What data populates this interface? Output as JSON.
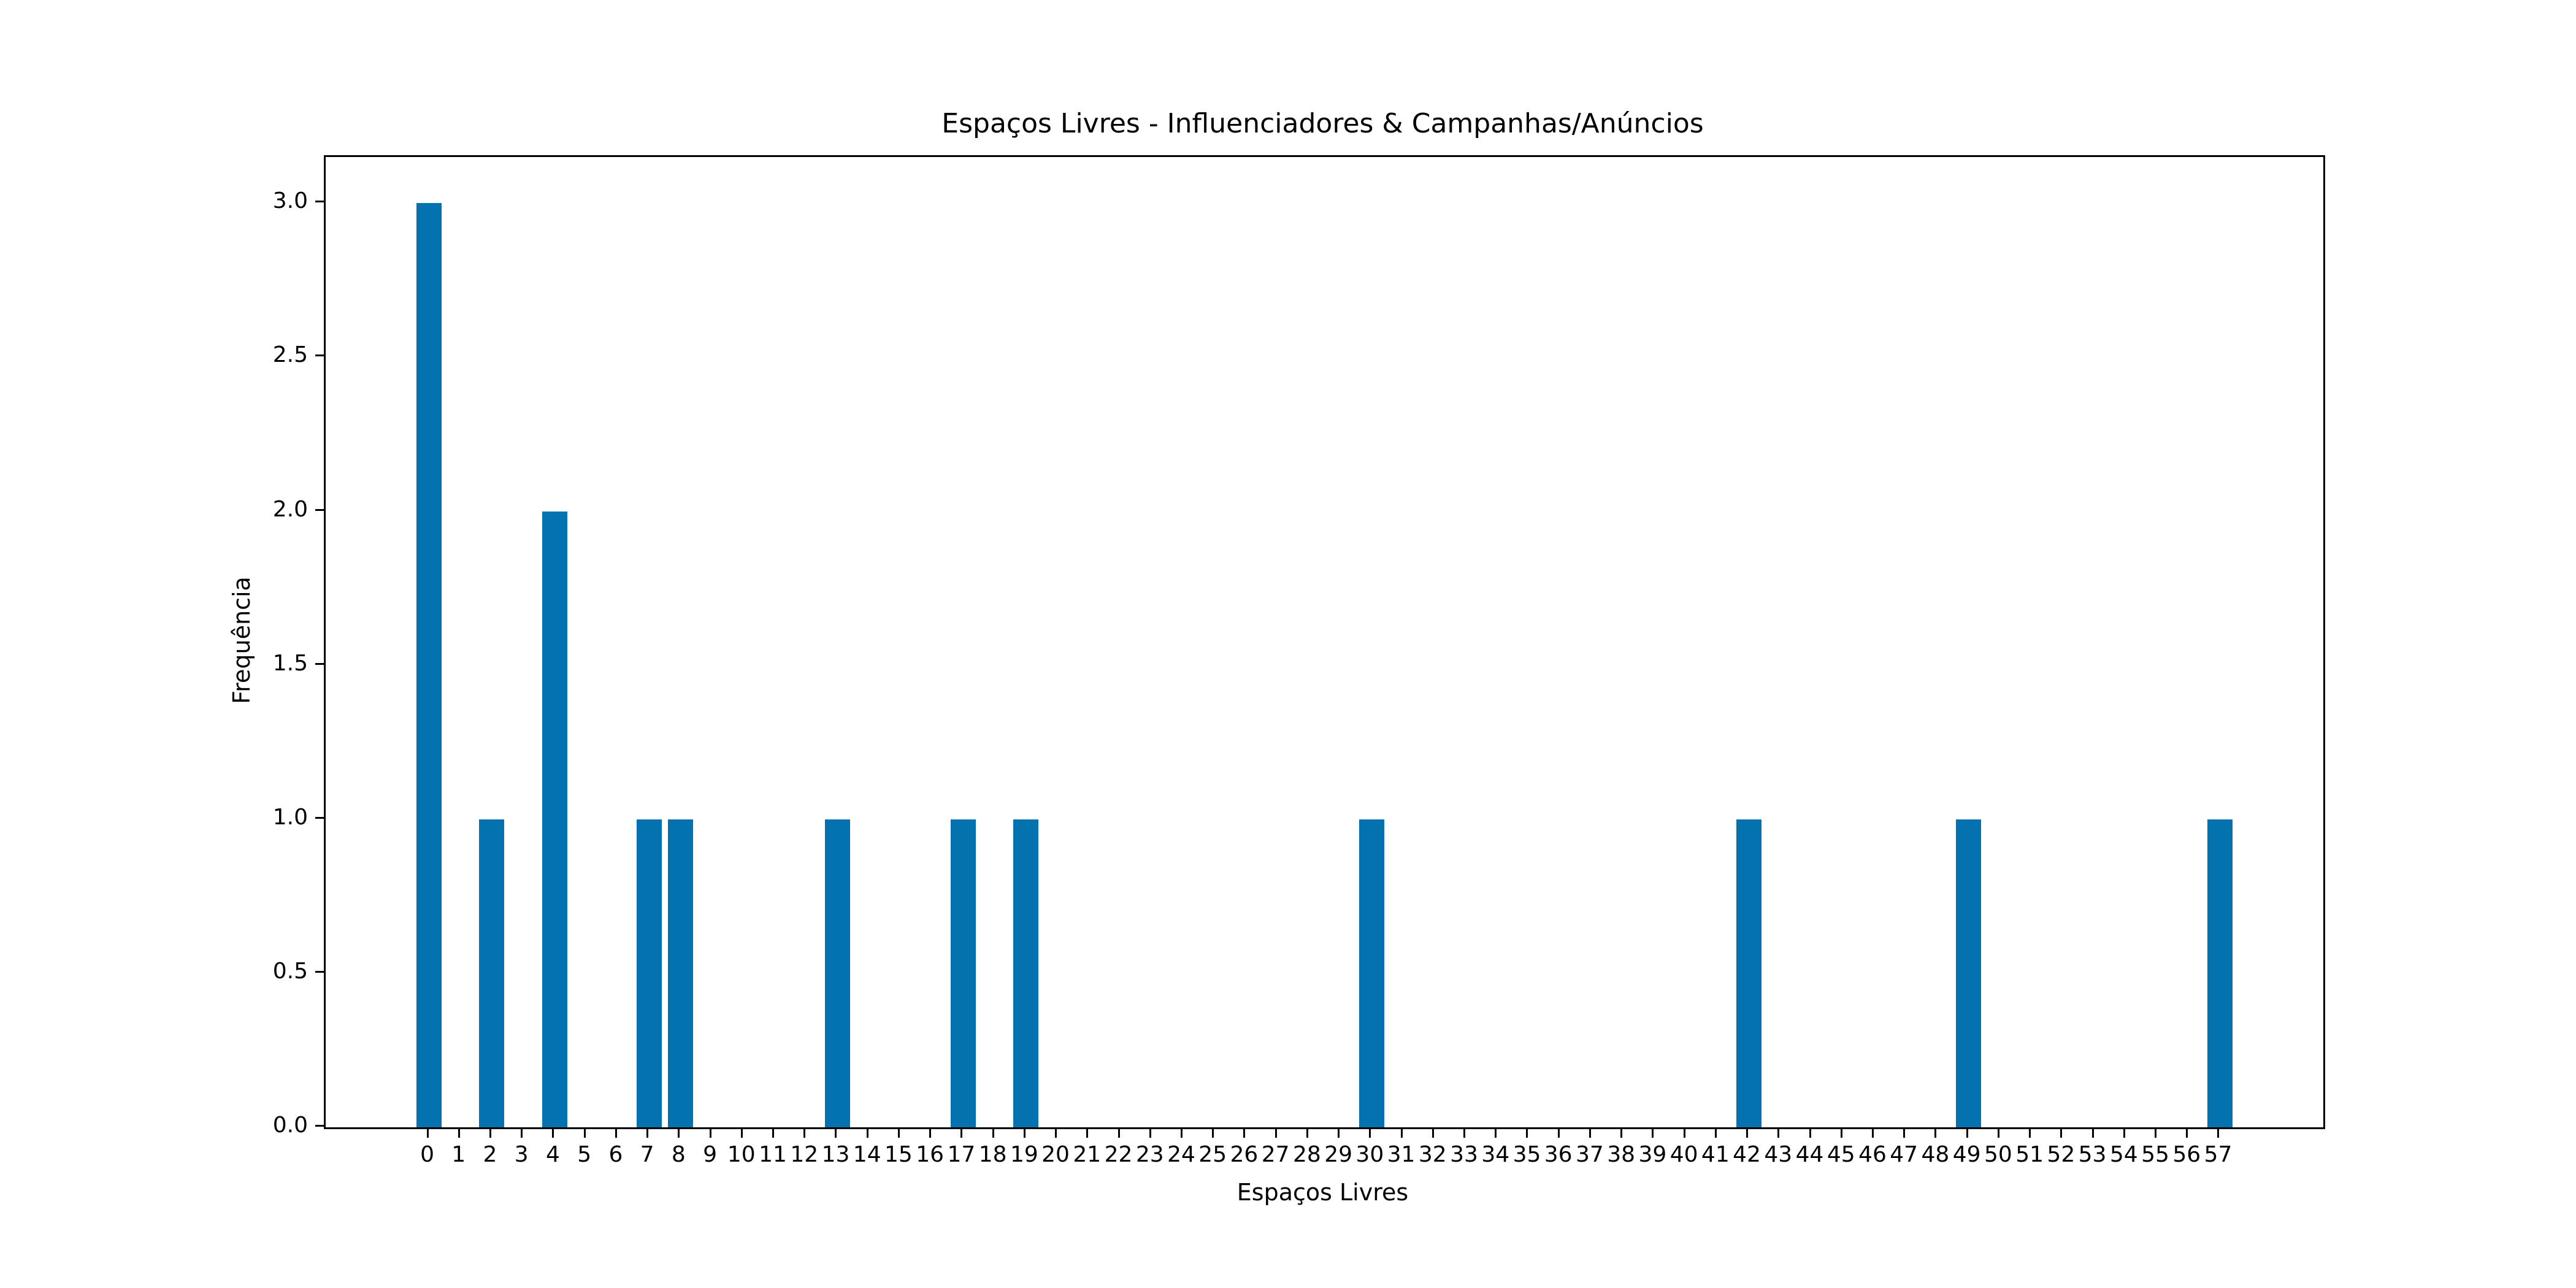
{
  "chart_data": {
    "type": "bar",
    "title": "Espaços Livres - Influenciadores & Campanhas/Anúncios",
    "xlabel": "Espaços Livres",
    "ylabel": "Frequência",
    "categories": [
      "0",
      "1",
      "2",
      "3",
      "4",
      "5",
      "6",
      "7",
      "8",
      "9",
      "10",
      "11",
      "12",
      "13",
      "14",
      "15",
      "16",
      "17",
      "18",
      "19",
      "20",
      "21",
      "22",
      "23",
      "24",
      "25",
      "26",
      "27",
      "28",
      "29",
      "30",
      "31",
      "32",
      "33",
      "34",
      "35",
      "36",
      "37",
      "38",
      "39",
      "40",
      "41",
      "42",
      "43",
      "44",
      "45",
      "46",
      "47",
      "48",
      "49",
      "50",
      "51",
      "52",
      "53",
      "54",
      "55",
      "56",
      "57"
    ],
    "values": [
      3,
      0,
      1,
      0,
      2,
      0,
      0,
      1,
      1,
      0,
      0,
      0,
      0,
      1,
      0,
      0,
      0,
      1,
      0,
      1,
      0,
      0,
      0,
      0,
      0,
      0,
      0,
      0,
      0,
      0,
      1,
      0,
      0,
      0,
      0,
      0,
      0,
      0,
      0,
      0,
      0,
      0,
      1,
      0,
      0,
      0,
      0,
      0,
      0,
      1,
      0,
      0,
      0,
      0,
      0,
      0,
      0,
      1
    ],
    "yticks": [
      {
        "value": 0.0,
        "label": "0.0"
      },
      {
        "value": 0.5,
        "label": "0.5"
      },
      {
        "value": 1.0,
        "label": "1.0"
      },
      {
        "value": 1.5,
        "label": "1.5"
      },
      {
        "value": 2.0,
        "label": "2.0"
      },
      {
        "value": 2.5,
        "label": "2.5"
      },
      {
        "value": 3.0,
        "label": "3.0"
      }
    ],
    "ylim": [
      0,
      3.15
    ],
    "xlim": [
      -3.29,
      60.29
    ],
    "bar_width_units": 0.8,
    "bar_color": "#0572b0",
    "spine_color": "#000000",
    "background_color": "#ffffff",
    "grid": false,
    "legend": null
  }
}
